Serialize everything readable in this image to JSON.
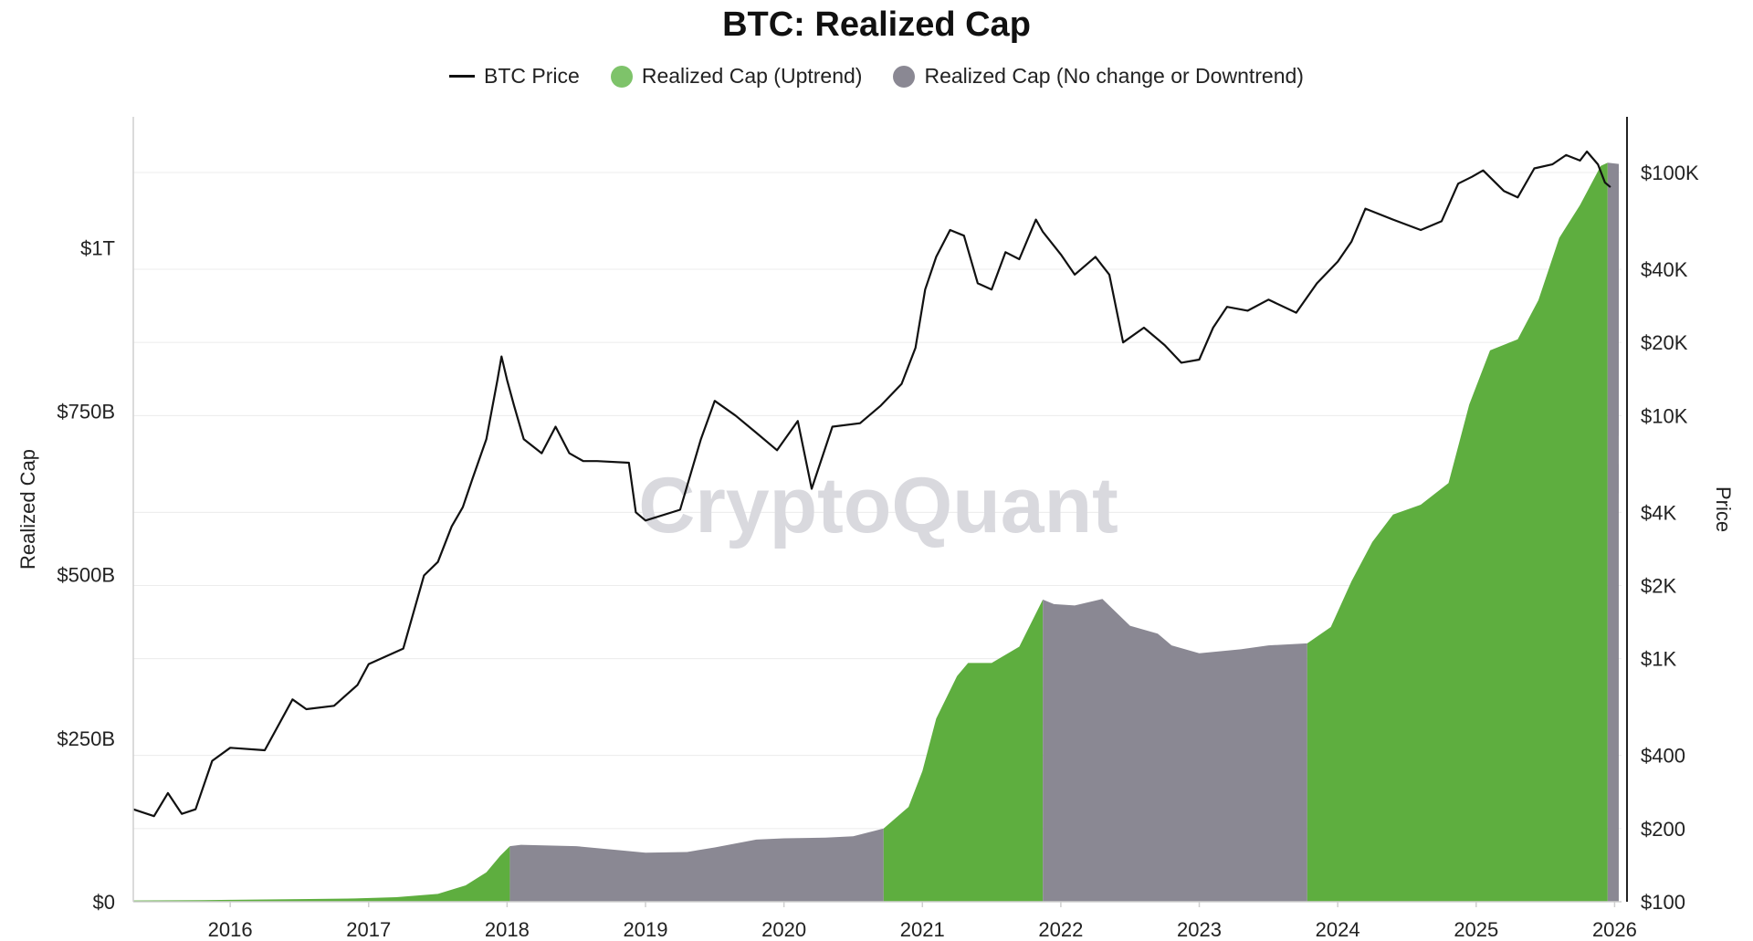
{
  "chart_data": {
    "type": "area",
    "title": "BTC: Realized Cap",
    "legend": [
      {
        "label": "BTC Price",
        "kind": "line",
        "color": "#111111"
      },
      {
        "label": "Realized Cap (Uptrend)",
        "kind": "dot",
        "color": "#7ec36a"
      },
      {
        "label": "Realized Cap (No change or Downtrend)",
        "kind": "dot",
        "color": "#8a8893"
      }
    ],
    "watermark": "CryptoQuant",
    "y_left": {
      "label": "Realized Cap",
      "unit": "USD",
      "range": [
        0,
        1200000000000
      ],
      "ticks": [
        {
          "v": 0,
          "label": "$0"
        },
        {
          "v": 250,
          "label": "$250B"
        },
        {
          "v": 500,
          "label": "$500B"
        },
        {
          "v": 750,
          "label": "$750B"
        },
        {
          "v": 1000,
          "label": "$1T"
        }
      ]
    },
    "y_right": {
      "label": "Price",
      "scale": "log",
      "range": [
        100,
        130000
      ],
      "ticks": [
        {
          "v": 100,
          "label": "$100"
        },
        {
          "v": 200,
          "label": "$200"
        },
        {
          "v": 400,
          "label": "$400"
        },
        {
          "v": 1000,
          "label": "$1K"
        },
        {
          "v": 2000,
          "label": "$2K"
        },
        {
          "v": 4000,
          "label": "$4K"
        },
        {
          "v": 10000,
          "label": "$10K"
        },
        {
          "v": 20000,
          "label": "$20K"
        },
        {
          "v": 40000,
          "label": "$40K"
        },
        {
          "v": 100000,
          "label": "$100K"
        }
      ]
    },
    "x_axis": {
      "range": [
        2015.3,
        2026.05
      ],
      "ticks": [
        "2016",
        "2017",
        "2018",
        "2019",
        "2020",
        "2021",
        "2022",
        "2023",
        "2024",
        "2025",
        "2026"
      ]
    },
    "colors": {
      "uptrend": "#5eae3f",
      "downtrend": "#8a8893",
      "price": "#111111",
      "grid": "#ececec",
      "axis": "#222222"
    },
    "segments": [
      {
        "trend": "up",
        "start": 2015.3,
        "end": 2018.02
      },
      {
        "trend": "down",
        "start": 2018.02,
        "end": 2020.72
      },
      {
        "trend": "up",
        "start": 2020.72,
        "end": 2021.87
      },
      {
        "trend": "down",
        "start": 2021.87,
        "end": 2023.78
      },
      {
        "trend": "up",
        "start": 2023.78,
        "end": 2025.95
      },
      {
        "trend": "down",
        "start": 2025.95,
        "end": 2026.03
      }
    ],
    "realized_cap_billions": [
      [
        2015.3,
        2
      ],
      [
        2015.8,
        2.5
      ],
      [
        2016.0,
        3
      ],
      [
        2016.5,
        4
      ],
      [
        2016.9,
        5
      ],
      [
        2017.2,
        7
      ],
      [
        2017.5,
        12
      ],
      [
        2017.7,
        25
      ],
      [
        2017.85,
        45
      ],
      [
        2017.95,
        70
      ],
      [
        2018.02,
        85
      ],
      [
        2018.1,
        87
      ],
      [
        2018.5,
        85
      ],
      [
        2018.8,
        79
      ],
      [
        2019.0,
        75
      ],
      [
        2019.3,
        76
      ],
      [
        2019.5,
        83
      ],
      [
        2019.8,
        95
      ],
      [
        2020.0,
        97
      ],
      [
        2020.3,
        98
      ],
      [
        2020.5,
        100
      ],
      [
        2020.72,
        112
      ],
      [
        2020.9,
        145
      ],
      [
        2021.0,
        200
      ],
      [
        2021.1,
        280
      ],
      [
        2021.25,
        345
      ],
      [
        2021.33,
        365
      ],
      [
        2021.5,
        365
      ],
      [
        2021.7,
        390
      ],
      [
        2021.87,
        462
      ],
      [
        2021.95,
        455
      ],
      [
        2022.1,
        453
      ],
      [
        2022.3,
        463
      ],
      [
        2022.5,
        422
      ],
      [
        2022.7,
        410
      ],
      [
        2022.8,
        392
      ],
      [
        2023.0,
        380
      ],
      [
        2023.3,
        386
      ],
      [
        2023.5,
        392
      ],
      [
        2023.78,
        395
      ],
      [
        2023.95,
        420
      ],
      [
        2024.1,
        490
      ],
      [
        2024.25,
        550
      ],
      [
        2024.4,
        592
      ],
      [
        2024.6,
        607
      ],
      [
        2024.8,
        640
      ],
      [
        2024.95,
        760
      ],
      [
        2025.1,
        843
      ],
      [
        2025.3,
        860
      ],
      [
        2025.45,
        920
      ],
      [
        2025.6,
        1015
      ],
      [
        2025.75,
        1065
      ],
      [
        2025.9,
        1125
      ],
      [
        2025.95,
        1130
      ],
      [
        2026.03,
        1128
      ]
    ],
    "btc_price_usd": [
      [
        2015.3,
        240
      ],
      [
        2015.45,
        225
      ],
      [
        2015.55,
        280
      ],
      [
        2015.65,
        230
      ],
      [
        2015.75,
        240
      ],
      [
        2015.87,
        380
      ],
      [
        2016.0,
        430
      ],
      [
        2016.25,
        420
      ],
      [
        2016.45,
        680
      ],
      [
        2016.55,
        620
      ],
      [
        2016.75,
        640
      ],
      [
        2016.92,
        780
      ],
      [
        2017.0,
        950
      ],
      [
        2017.25,
        1100
      ],
      [
        2017.4,
        2200
      ],
      [
        2017.5,
        2500
      ],
      [
        2017.6,
        3500
      ],
      [
        2017.68,
        4200
      ],
      [
        2017.75,
        5500
      ],
      [
        2017.85,
        8000
      ],
      [
        2017.93,
        14000
      ],
      [
        2017.96,
        17500
      ],
      [
        2018.0,
        14000
      ],
      [
        2018.05,
        11000
      ],
      [
        2018.12,
        8000
      ],
      [
        2018.25,
        7000
      ],
      [
        2018.35,
        9000
      ],
      [
        2018.45,
        7000
      ],
      [
        2018.55,
        6500
      ],
      [
        2018.65,
        6500
      ],
      [
        2018.88,
        6400
      ],
      [
        2018.93,
        4000
      ],
      [
        2019.0,
        3700
      ],
      [
        2019.25,
        4100
      ],
      [
        2019.4,
        8000
      ],
      [
        2019.5,
        11500
      ],
      [
        2019.65,
        10000
      ],
      [
        2019.8,
        8500
      ],
      [
        2019.95,
        7200
      ],
      [
        2020.1,
        9500
      ],
      [
        2020.2,
        5000
      ],
      [
        2020.35,
        9000
      ],
      [
        2020.55,
        9300
      ],
      [
        2020.7,
        11000
      ],
      [
        2020.85,
        13500
      ],
      [
        2020.95,
        19000
      ],
      [
        2021.02,
        33000
      ],
      [
        2021.1,
        45000
      ],
      [
        2021.2,
        58000
      ],
      [
        2021.3,
        55000
      ],
      [
        2021.4,
        35000
      ],
      [
        2021.5,
        33000
      ],
      [
        2021.6,
        47000
      ],
      [
        2021.7,
        44000
      ],
      [
        2021.82,
        64000
      ],
      [
        2021.87,
        57000
      ],
      [
        2022.0,
        46000
      ],
      [
        2022.1,
        38000
      ],
      [
        2022.25,
        45000
      ],
      [
        2022.35,
        38000
      ],
      [
        2022.45,
        20000
      ],
      [
        2022.6,
        23000
      ],
      [
        2022.75,
        19500
      ],
      [
        2022.87,
        16500
      ],
      [
        2023.0,
        17000
      ],
      [
        2023.1,
        23000
      ],
      [
        2023.2,
        28000
      ],
      [
        2023.35,
        27000
      ],
      [
        2023.5,
        30000
      ],
      [
        2023.7,
        26500
      ],
      [
        2023.85,
        35000
      ],
      [
        2024.0,
        43000
      ],
      [
        2024.1,
        52000
      ],
      [
        2024.2,
        71000
      ],
      [
        2024.4,
        64000
      ],
      [
        2024.6,
        58000
      ],
      [
        2024.75,
        63000
      ],
      [
        2024.87,
        90000
      ],
      [
        2024.97,
        96000
      ],
      [
        2025.05,
        102000
      ],
      [
        2025.2,
        84000
      ],
      [
        2025.3,
        79000
      ],
      [
        2025.42,
        104000
      ],
      [
        2025.55,
        108000
      ],
      [
        2025.65,
        118000
      ],
      [
        2025.75,
        112000
      ],
      [
        2025.8,
        122000
      ],
      [
        2025.88,
        108000
      ],
      [
        2025.93,
        91000
      ],
      [
        2025.97,
        87000
      ]
    ]
  }
}
